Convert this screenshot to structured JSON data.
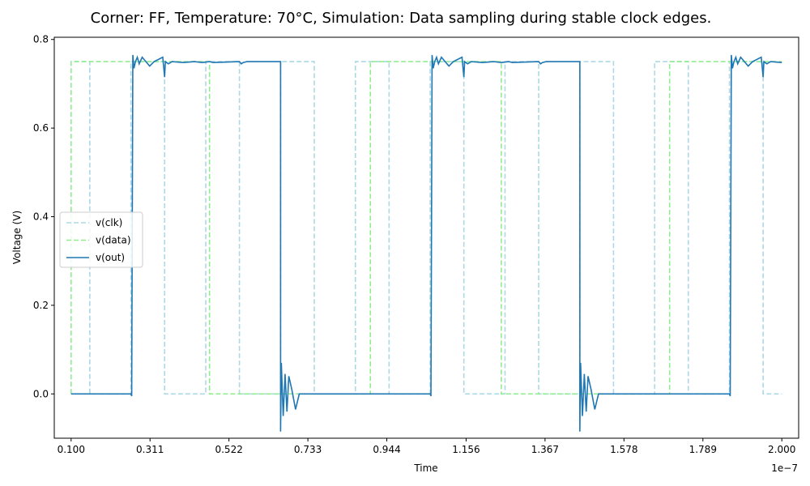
{
  "chart_data": {
    "type": "line",
    "title": "Corner: FF, Temperature: 70°C, Simulation: Data sampling during stable clock edges.",
    "xlabel": "Time",
    "ylabel": "Voltage (V)",
    "x_offset_text": "1e−7",
    "xlim": [
      0.055,
      2.045
    ],
    "ylim": [
      -0.1,
      0.805
    ],
    "x_ticks": [
      0.1,
      0.311,
      0.522,
      0.733,
      0.944,
      1.156,
      1.367,
      1.578,
      1.789,
      2.0
    ],
    "x_tick_labels": [
      "0.100",
      "0.311",
      "0.522",
      "0.733",
      "0.944",
      "1.156",
      "1.367",
      "1.578",
      "1.789",
      "2.000"
    ],
    "y_ticks": [
      0.0,
      0.2,
      0.4,
      0.6,
      0.8
    ],
    "y_tick_labels": [
      "0.0",
      "0.2",
      "0.4",
      "0.6",
      "0.8"
    ],
    "legend_position": "center-left",
    "grid": false,
    "series": [
      {
        "name": "v(clk)",
        "color": "#add8e6",
        "dash": "dashed",
        "x": [
          0.1,
          0.1,
          0.15,
          0.15,
          0.26,
          0.26,
          0.35,
          0.35,
          0.46,
          0.46,
          0.55,
          0.55,
          0.66,
          0.66,
          0.75,
          0.75,
          0.86,
          0.86,
          0.95,
          0.95,
          1.06,
          1.06,
          1.15,
          1.15,
          1.26,
          1.26,
          1.35,
          1.35,
          1.46,
          1.46,
          1.55,
          1.55,
          1.66,
          1.66,
          1.75,
          1.75,
          1.86,
          1.86,
          1.95,
          1.95,
          2.0
        ],
        "y": [
          0,
          0.75,
          0.75,
          0,
          0,
          0.75,
          0.75,
          0,
          0,
          0.75,
          0.75,
          0,
          0,
          0.75,
          0.75,
          0,
          0,
          0.75,
          0.75,
          0,
          0,
          0.75,
          0.75,
          0,
          0,
          0.75,
          0.75,
          0,
          0,
          0.75,
          0.75,
          0,
          0,
          0.75,
          0.75,
          0,
          0,
          0.75,
          0.75,
          0,
          0
        ]
      },
      {
        "name": "v(data)",
        "color": "#90ee90",
        "dash": "dashed",
        "x": [
          0.1,
          0.1,
          0.47,
          0.47,
          0.9,
          0.9,
          1.25,
          1.25,
          1.7,
          1.7,
          2.0
        ],
        "y": [
          0,
          0.75,
          0.75,
          0,
          0,
          0.75,
          0.75,
          0,
          0,
          0.75,
          0.75
        ]
      },
      {
        "name": "v(out)",
        "color": "#1f77b4",
        "dash": "solid",
        "x": [
          0.1,
          0.26,
          0.262,
          0.265,
          0.268,
          0.272,
          0.277,
          0.282,
          0.29,
          0.3,
          0.31,
          0.322,
          0.345,
          0.35,
          0.352,
          0.36,
          0.37,
          0.4,
          0.43,
          0.45,
          0.47,
          0.48,
          0.55,
          0.555,
          0.56,
          0.57,
          0.66,
          0.66,
          0.662,
          0.667,
          0.672,
          0.677,
          0.682,
          0.69,
          0.7,
          0.71,
          0.73,
          0.75,
          0.76,
          0.77,
          1.06,
          1.06,
          1.062,
          1.065,
          1.068,
          1.072,
          1.077,
          1.082,
          1.09,
          1.1,
          1.11,
          1.122,
          1.145,
          1.15,
          1.152,
          1.16,
          1.17,
          1.2,
          1.23,
          1.25,
          1.27,
          1.28,
          1.35,
          1.355,
          1.36,
          1.37,
          1.46,
          1.46,
          1.462,
          1.467,
          1.472,
          1.477,
          1.482,
          1.49,
          1.5,
          1.51,
          1.53,
          1.55,
          1.56,
          1.57,
          1.86,
          1.86,
          1.862,
          1.865,
          1.868,
          1.872,
          1.877,
          1.882,
          1.89,
          1.9,
          1.91,
          1.922,
          1.945,
          1.95,
          1.952,
          1.96,
          1.97,
          2.0
        ],
        "y": [
          0,
          0,
          -0.005,
          0.765,
          0.735,
          0.75,
          0.76,
          0.745,
          0.76,
          0.75,
          0.74,
          0.75,
          0.76,
          0.715,
          0.75,
          0.745,
          0.75,
          0.748,
          0.75,
          0.748,
          0.75,
          0.748,
          0.75,
          0.745,
          0.748,
          0.75,
          0.75,
          -0.085,
          0.07,
          -0.05,
          0.045,
          -0.04,
          0.04,
          0.01,
          -0.035,
          0,
          0,
          0,
          0,
          0,
          0,
          0,
          -0.005,
          0.765,
          0.735,
          0.75,
          0.76,
          0.745,
          0.76,
          0.75,
          0.74,
          0.75,
          0.76,
          0.715,
          0.75,
          0.745,
          0.75,
          0.748,
          0.75,
          0.748,
          0.75,
          0.748,
          0.75,
          0.745,
          0.748,
          0.75,
          0.75,
          -0.085,
          0.07,
          -0.05,
          0.045,
          -0.04,
          0.04,
          0.01,
          -0.035,
          0,
          0,
          0,
          0,
          0,
          0,
          0,
          -0.005,
          0.765,
          0.735,
          0.75,
          0.76,
          0.745,
          0.76,
          0.75,
          0.74,
          0.75,
          0.76,
          0.715,
          0.75,
          0.745,
          0.75,
          0.748
        ]
      }
    ]
  }
}
